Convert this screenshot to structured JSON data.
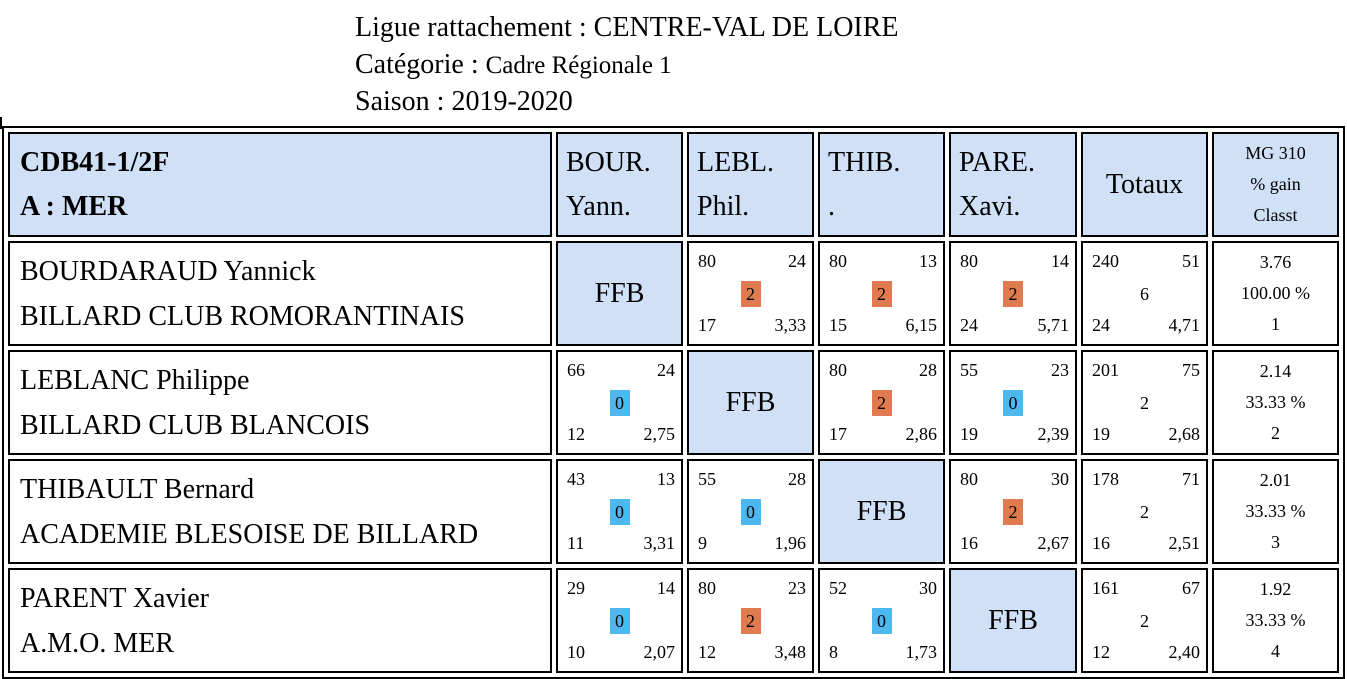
{
  "header": {
    "line1": "Ligue rattachement : CENTRE-VAL DE LOIRE",
    "line2_label": "Catégorie : ",
    "line2_value": "Cadre Régionale 1",
    "line3": "Saison : 2019-2020"
  },
  "table": {
    "team_code": "CDB41-1/2F",
    "team_name": "A : MER",
    "player_headers": [
      {
        "l1": "BOUR.",
        "l2": "Yann."
      },
      {
        "l1": "LEBL.",
        "l2": "Phil."
      },
      {
        "l1": "THIB.",
        "l2": "."
      },
      {
        "l1": "PARE.",
        "l2": "Xavi."
      }
    ],
    "totals_header": "Totaux",
    "mg_header": {
      "l1": "MG 310",
      "l2": "% gain",
      "l3": "Classt"
    },
    "self_label": "FFB",
    "rows": [
      {
        "name": "BOURDARAUD Yannick",
        "club": "BILLARD CLUB ROMORANTINAIS",
        "cells": [
          null,
          {
            "tl": "80",
            "tr": "24",
            "mid": "2",
            "bl": "17",
            "br": "3,33",
            "result": "win"
          },
          {
            "tl": "80",
            "tr": "13",
            "mid": "2",
            "bl": "15",
            "br": "6,15",
            "result": "win"
          },
          {
            "tl": "80",
            "tr": "14",
            "mid": "2",
            "bl": "24",
            "br": "5,71",
            "result": "win"
          }
        ],
        "total": {
          "tl": "240",
          "tr": "51",
          "mid": "6",
          "bl": "24",
          "br": "4,71"
        },
        "stats": {
          "mg": "3.76",
          "pct": "100.00 %",
          "rank": "1"
        }
      },
      {
        "name": "LEBLANC Philippe",
        "club": "BILLARD CLUB BLANCOIS",
        "cells": [
          {
            "tl": "66",
            "tr": "24",
            "mid": "0",
            "bl": "12",
            "br": "2,75",
            "result": "loss"
          },
          null,
          {
            "tl": "80",
            "tr": "28",
            "mid": "2",
            "bl": "17",
            "br": "2,86",
            "result": "win"
          },
          {
            "tl": "55",
            "tr": "23",
            "mid": "0",
            "bl": "19",
            "br": "2,39",
            "result": "loss"
          }
        ],
        "total": {
          "tl": "201",
          "tr": "75",
          "mid": "2",
          "bl": "19",
          "br": "2,68"
        },
        "stats": {
          "mg": "2.14",
          "pct": "33.33 %",
          "rank": "2"
        }
      },
      {
        "name": "THIBAULT Bernard",
        "club": "ACADEMIE BLESOISE DE BILLARD",
        "cells": [
          {
            "tl": "43",
            "tr": "13",
            "mid": "0",
            "bl": "11",
            "br": "3,31",
            "result": "loss"
          },
          {
            "tl": "55",
            "tr": "28",
            "mid": "0",
            "bl": "9",
            "br": "1,96",
            "result": "loss"
          },
          null,
          {
            "tl": "80",
            "tr": "30",
            "mid": "2",
            "bl": "16",
            "br": "2,67",
            "result": "win"
          }
        ],
        "total": {
          "tl": "178",
          "tr": "71",
          "mid": "2",
          "bl": "16",
          "br": "2,51"
        },
        "stats": {
          "mg": "2.01",
          "pct": "33.33 %",
          "rank": "3"
        }
      },
      {
        "name": "PARENT Xavier",
        "club": "A.M.O. MER",
        "cells": [
          {
            "tl": "29",
            "tr": "14",
            "mid": "0",
            "bl": "10",
            "br": "2,07",
            "result": "loss"
          },
          {
            "tl": "80",
            "tr": "23",
            "mid": "2",
            "bl": "12",
            "br": "3,48",
            "result": "win"
          },
          {
            "tl": "52",
            "tr": "30",
            "mid": "0",
            "bl": "8",
            "br": "1,73",
            "result": "loss"
          },
          null
        ],
        "total": {
          "tl": "161",
          "tr": "67",
          "mid": "2",
          "bl": "12",
          "br": "2,40"
        },
        "stats": {
          "mg": "1.92",
          "pct": "33.33 %",
          "rank": "4"
        }
      }
    ]
  },
  "colors": {
    "header_blue": "#cfe0f7",
    "win_orange": "#e07b4f",
    "loss_blue": "#4db8f0"
  }
}
